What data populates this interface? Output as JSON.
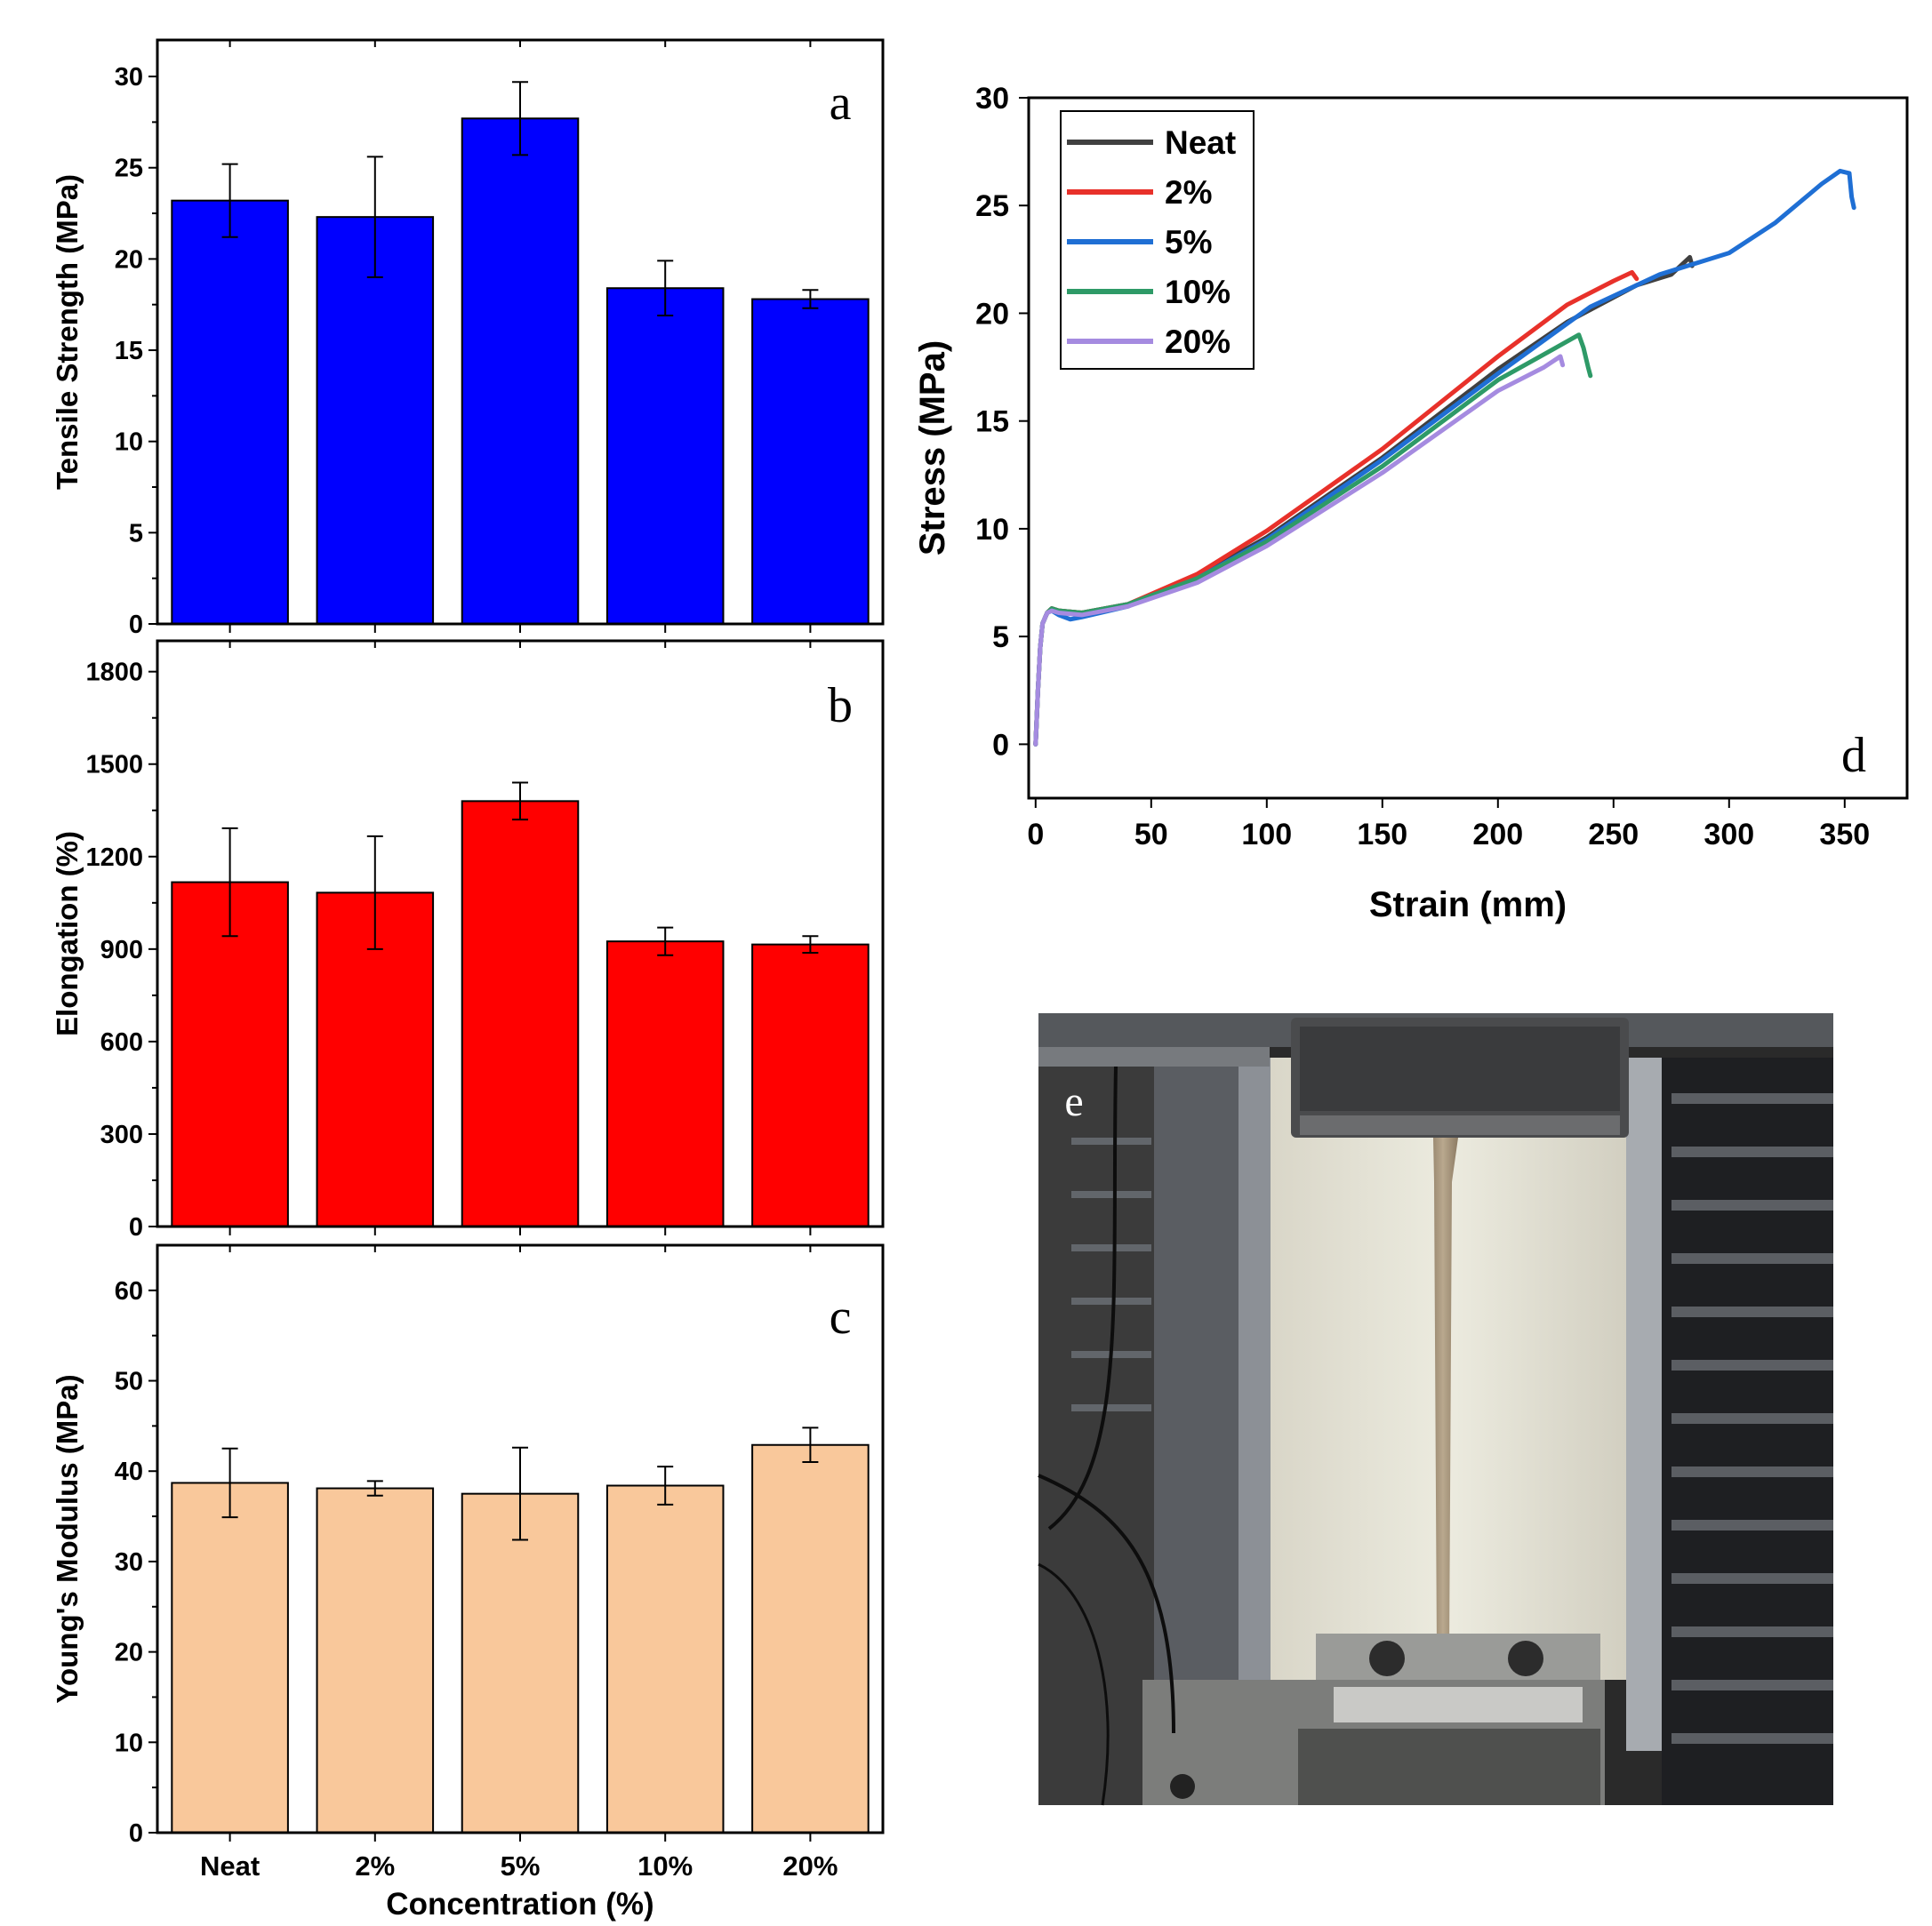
{
  "chart_data": [
    {
      "type": "bar",
      "panel": "a",
      "ylabel": "Tensile Strength (MPa)",
      "ylim": [
        0,
        32
      ],
      "yticks": [
        0,
        5,
        10,
        15,
        20,
        25,
        30
      ],
      "categories": [
        "Neat",
        "2%",
        "5%",
        "10%",
        "20%"
      ],
      "values": [
        23.2,
        22.3,
        27.7,
        18.4,
        17.8
      ],
      "errors": [
        2.0,
        3.3,
        2.0,
        1.5,
        0.5
      ],
      "color": "#0000ff"
    },
    {
      "type": "bar",
      "panel": "b",
      "ylabel": "Elongation (%)",
      "ylim": [
        0,
        1900
      ],
      "yticks": [
        0,
        300,
        600,
        900,
        1200,
        1500,
        1800
      ],
      "categories": [
        "Neat",
        "2%",
        "5%",
        "10%",
        "20%"
      ],
      "values": [
        1117,
        1083,
        1380,
        925,
        915
      ],
      "errors": [
        175,
        183,
        60,
        45,
        27
      ],
      "color": "#ff0000"
    },
    {
      "type": "bar",
      "panel": "c",
      "ylabel": "Young's Modulus (MPa)",
      "xlabel": "Concentration (%)",
      "ylim": [
        0,
        65
      ],
      "yticks": [
        0,
        10,
        20,
        30,
        40,
        50,
        60
      ],
      "categories": [
        "Neat",
        "2%",
        "5%",
        "10%",
        "20%"
      ],
      "values": [
        38.7,
        38.1,
        37.5,
        38.4,
        42.9
      ],
      "errors": [
        3.8,
        0.8,
        5.1,
        2.1,
        1.9
      ],
      "color": "#f9c89b"
    },
    {
      "type": "line",
      "panel": "d",
      "xlabel": "Strain (mm)",
      "ylabel": "Stress (MPa)",
      "xlim": [
        -3,
        377
      ],
      "ylim": [
        -2.5,
        30
      ],
      "xticks": [
        0,
        50,
        100,
        150,
        200,
        250,
        300,
        350
      ],
      "yticks": [
        0,
        5,
        10,
        15,
        20,
        25,
        30
      ],
      "legend_position": "top-left",
      "series": [
        {
          "name": "Neat",
          "color": "#404040",
          "x": [
            0,
            1,
            2,
            3,
            5,
            7,
            10,
            20,
            40,
            70,
            100,
            150,
            200,
            230,
            260,
            275,
            283,
            284
          ],
          "y": [
            0,
            2.5,
            4.5,
            5.6,
            6.1,
            6.3,
            6.2,
            6.1,
            6.5,
            7.8,
            9.6,
            13.3,
            17.4,
            19.6,
            21.3,
            21.8,
            22.6,
            22.2
          ]
        },
        {
          "name": "2%",
          "color": "#e8312a",
          "x": [
            0,
            1,
            2,
            3,
            5,
            7,
            10,
            20,
            40,
            70,
            100,
            150,
            200,
            230,
            250,
            258,
            260
          ],
          "y": [
            0,
            2.5,
            4.5,
            5.6,
            6.1,
            6.3,
            6.2,
            6.1,
            6.5,
            7.9,
            9.9,
            13.7,
            18.0,
            20.4,
            21.5,
            21.9,
            21.6
          ]
        },
        {
          "name": "5%",
          "color": "#1f6fd4",
          "x": [
            0,
            1,
            2,
            3,
            5,
            7,
            10,
            15,
            20,
            40,
            70,
            100,
            150,
            200,
            240,
            270,
            300,
            320,
            340,
            348,
            352,
            353,
            354
          ],
          "y": [
            0,
            2.5,
            4.5,
            5.6,
            6.1,
            6.2,
            6.0,
            5.8,
            5.9,
            6.4,
            7.7,
            9.5,
            13.2,
            17.2,
            20.3,
            21.8,
            22.8,
            24.2,
            26.0,
            26.6,
            26.5,
            25.4,
            24.9
          ]
        },
        {
          "name": "10%",
          "color": "#2e9a67",
          "x": [
            0,
            1,
            2,
            3,
            5,
            7,
            10,
            20,
            40,
            70,
            100,
            150,
            200,
            225,
            235,
            237,
            239,
            240
          ],
          "y": [
            0,
            2.5,
            4.5,
            5.6,
            6.1,
            6.3,
            6.2,
            6.1,
            6.5,
            7.7,
            9.4,
            12.9,
            16.9,
            18.4,
            19.0,
            18.4,
            17.5,
            17.1
          ]
        },
        {
          "name": "20%",
          "color": "#a58be0",
          "x": [
            0,
            1,
            2,
            3,
            5,
            7,
            10,
            20,
            40,
            70,
            100,
            150,
            200,
            220,
            227,
            228
          ],
          "y": [
            0,
            2.5,
            4.5,
            5.6,
            6.1,
            6.2,
            6.1,
            6.0,
            6.4,
            7.5,
            9.2,
            12.6,
            16.4,
            17.5,
            18.0,
            17.6
          ]
        }
      ]
    }
  ],
  "photo": {
    "label": "e",
    "description_icon": "tensile-test-photo-icon"
  }
}
